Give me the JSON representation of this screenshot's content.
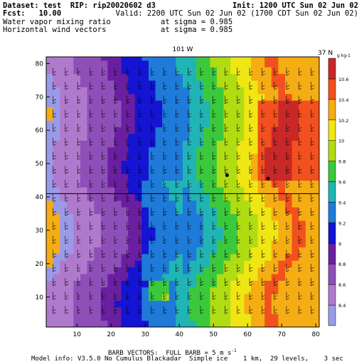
{
  "header": {
    "line1_left": "Dataset: test  RIP: rip20020602 d3",
    "line1_right": "Init: 1200 UTC Sun 02 Jun 02",
    "line2_left": "Fcst:   10.00",
    "line2_right": "Valid: 2200 UTC Sun 02 Jun 02 (1700 CDT Sun 02 Jun 02)",
    "line3_left": "Water vapor mixing ratio",
    "line3_mid": "at sigma = 0.985",
    "line4_left": "Horizontal wind vectors",
    "line4_mid": "at sigma = 0.985"
  },
  "chart_data": {
    "type": "heatmap",
    "title": "",
    "top_labels": {
      "lon": "101 W",
      "lat": "37 N"
    },
    "xlim": [
      1,
      81
    ],
    "ylim": [
      1,
      82
    ],
    "xticks": [
      10,
      20,
      30,
      40,
      50,
      60,
      70,
      80
    ],
    "yticks": [
      10,
      20,
      30,
      40,
      50,
      60,
      70,
      80
    ],
    "colorbar": {
      "unit": "g kg-1",
      "levels": [
        8.4,
        8.6,
        8.8,
        9,
        9.2,
        9.4,
        9.6,
        9.8,
        10,
        10.2,
        10.4,
        10.6
      ],
      "colors": [
        "#9a9ae8",
        "#b07acc",
        "#8f4fb8",
        "#6a1fa0",
        "#1414d2",
        "#1f7ad8",
        "#21b4b4",
        "#3cc83c",
        "#b0dc14",
        "#f0e614",
        "#f5ad14",
        "#f2501e",
        "#c82828"
      ]
    },
    "reference_line_y": 41,
    "points": [
      {
        "x": 54,
        "y": 46.5
      },
      {
        "x": 66,
        "y": 45.5
      }
    ],
    "moisture_band": {
      "levels_note": "mixing ratio increases from west (x=1) to east (x=81)",
      "profile": [
        {
          "x": 1,
          "value": 8.3
        },
        {
          "x": 10,
          "value": 8.55
        },
        {
          "x": 20,
          "value": 8.75
        },
        {
          "x": 30,
          "value": 9.15
        },
        {
          "x": 40,
          "value": 9.3
        },
        {
          "x": 50,
          "value": 9.7
        },
        {
          "x": 60,
          "value": 10.05
        },
        {
          "x": 70,
          "value": 10.45
        },
        {
          "x": 81,
          "value": 10.2
        }
      ]
    },
    "wind_barb_reference": "FULL BARB = 5 m s-1"
  },
  "footer": {
    "barb_caption": "BARB VECTORS:  FULL BARB = 5 m s",
    "barb_unit_sup": "-1",
    "model_info": "Model info: V3.5.0 No Cumulus Blackadar  Simple ice    1 km,  29 levels,    3 sec"
  }
}
